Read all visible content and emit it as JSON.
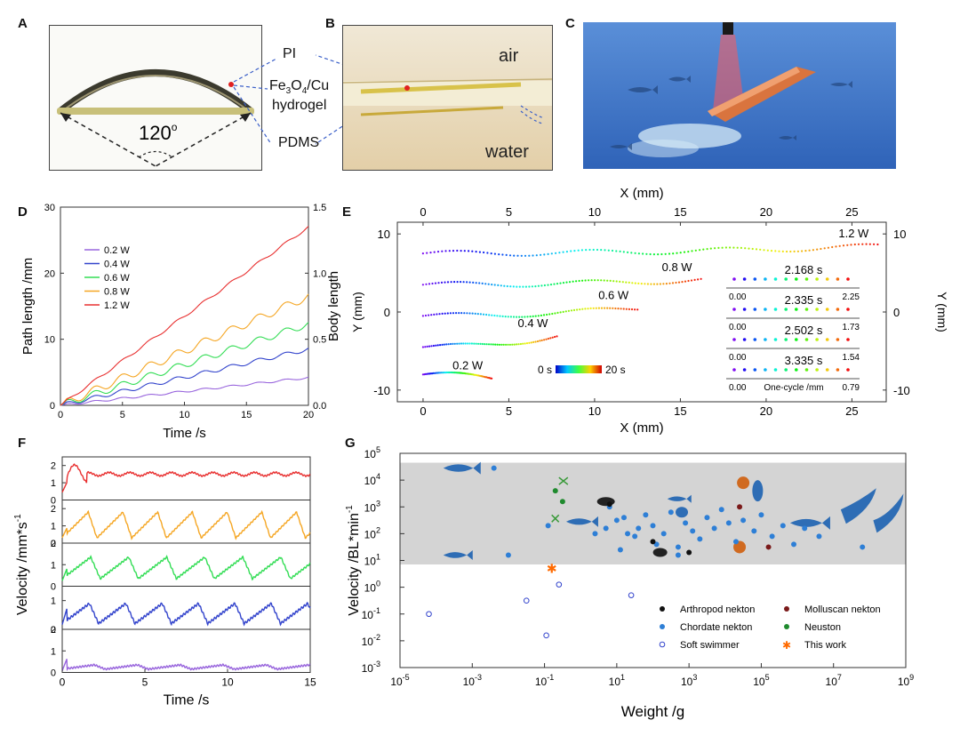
{
  "panels": {
    "A": "A",
    "B": "B",
    "C": "C",
    "D": "D",
    "E": "E",
    "F": "F",
    "G": "G"
  },
  "photoA": {
    "angle": "120",
    "angle_unit": "o"
  },
  "photoB": {
    "air": "air",
    "water": "water"
  },
  "layers": {
    "pi": "PI",
    "fe_pre": "Fe",
    "fe_sub1": "3",
    "fe_mid": "O",
    "fe_sub2": "4",
    "fe_post": "/Cu",
    "hydrogel": "hydrogel",
    "pdms": "PDMS"
  },
  "colors": {
    "w02": "#9966dd",
    "w04": "#3344cc",
    "w06": "#33dd55",
    "w08": "#f5a623",
    "w12": "#e83030",
    "grey_band": "#d4d4d4",
    "marine": "#2e6db5"
  },
  "chart_data": [
    {
      "id": "D",
      "type": "line",
      "xlabel": "Time /s",
      "ylabel": "Path length /mm",
      "y2label": "Body length",
      "xlim": [
        0,
        20
      ],
      "ylim": [
        0,
        30
      ],
      "y2lim": [
        0,
        1.5
      ],
      "xticks": [
        "0",
        "5",
        "10",
        "15",
        "20"
      ],
      "yticks": [
        "0",
        "10",
        "20",
        "30"
      ],
      "y2ticks": [
        "0.0",
        "0.5",
        "1.0",
        "1.5"
      ],
      "series": [
        {
          "name": "0.2 W",
          "color": "#9966dd",
          "end": 4.2,
          "wave": 0.15
        },
        {
          "name": "0.4 W",
          "color": "#3344cc",
          "end": 8.5,
          "wave": 0.3
        },
        {
          "name": "0.6 W",
          "color": "#33dd55",
          "end": 12.3,
          "wave": 0.5
        },
        {
          "name": "0.8 W",
          "color": "#f5a623",
          "end": 16.5,
          "wave": 0.6
        },
        {
          "name": "1.2 W",
          "color": "#e83030",
          "end": 27.0,
          "wave": 0.2
        }
      ]
    },
    {
      "id": "E",
      "type": "scatter",
      "xlabel": "X (mm)",
      "ylabel": "Y (mm)",
      "xlim": [
        -1.5,
        27
      ],
      "ylim": [
        -11.5,
        11.5
      ],
      "xticks": [
        "0",
        "5",
        "10",
        "15",
        "20",
        "25"
      ],
      "yticks": [
        "-10",
        "0",
        "10"
      ],
      "colorbar": {
        "min": "0 s",
        "max": "20 s"
      },
      "series": [
        {
          "name": "0.2 W",
          "y": -8,
          "xend": 4.0,
          "drop": -0.5
        },
        {
          "name": "0.4 W",
          "y": -4.5,
          "xend": 7.8,
          "drop": 1.4
        },
        {
          "name": "0.6 W",
          "y": -0.5,
          "xend": 12.5,
          "drop": 1.0
        },
        {
          "name": "0.8 W",
          "y": 3.5,
          "xend": 16.2,
          "drop": 0.6
        },
        {
          "name": "1.2 W",
          "y": 7.5,
          "xend": 26.5,
          "drop": 0.9
        }
      ],
      "inset": {
        "rows": [
          {
            "time": "2.168 s",
            "start": "0.00",
            "end": "2.25"
          },
          {
            "time": "2.335 s",
            "start": "0.00",
            "end": "1.73"
          },
          {
            "time": "2.502 s",
            "start": "0.00",
            "end": "1.54"
          },
          {
            "time": "3.335 s",
            "start": "0.00",
            "end": "0.79"
          }
        ],
        "label": "One-cycle /mm"
      }
    },
    {
      "id": "F",
      "type": "line",
      "xlabel": "Time /s",
      "ylabel": "Velocity /mm*s",
      "ylabel_sup": "-1",
      "xlim": [
        0,
        15
      ],
      "xticks": [
        "0",
        "5",
        "10",
        "15"
      ],
      "subplots": [
        {
          "color": "#e83030",
          "ylim": [
            0,
            2.5
          ],
          "yticks": [
            "0",
            "1",
            "2"
          ],
          "base": 1.5,
          "amp": 0.1,
          "period": 1.0
        },
        {
          "color": "#f5a623",
          "ylim": [
            0,
            2.5
          ],
          "yticks": [
            "0",
            "1",
            "2"
          ],
          "base": 1.05,
          "amp": 0.75,
          "period": 2.1
        },
        {
          "color": "#33dd55",
          "ylim": [
            0,
            2
          ],
          "yticks": [
            "0",
            "1",
            "2"
          ],
          "base": 0.85,
          "amp": 0.5,
          "period": 2.3
        },
        {
          "color": "#3344cc",
          "ylim": [
            0,
            1.5
          ],
          "yticks": [
            "0",
            "1"
          ],
          "base": 0.55,
          "amp": 0.35,
          "period": 2.2
        },
        {
          "color": "#9966dd",
          "ylim": [
            0,
            2
          ],
          "yticks": [
            "0",
            "1",
            "2"
          ],
          "base": 0.25,
          "amp": 0.1,
          "period": 2.6
        }
      ]
    },
    {
      "id": "G",
      "type": "scatter",
      "xlabel": "Weight /g",
      "ylabel": "Velocity /BL*min",
      "ylabel_sup": "-1",
      "xscale": "log",
      "yscale": "log",
      "xlim": [
        -5,
        9
      ],
      "ylim": [
        -3,
        5
      ],
      "band": [
        0.85,
        4.65
      ],
      "xticks": [
        {
          "base": "10",
          "exp": "-5"
        },
        {
          "base": "10",
          "exp": "-3"
        },
        {
          "base": "10",
          "exp": "-1"
        },
        {
          "base": "10",
          "exp": "1"
        },
        {
          "base": "10",
          "exp": "3"
        },
        {
          "base": "10",
          "exp": "5"
        },
        {
          "base": "10",
          "exp": "7"
        },
        {
          "base": "10",
          "exp": "9"
        }
      ],
      "yticks": [
        {
          "base": "10",
          "exp": "-3"
        },
        {
          "base": "10",
          "exp": "-2"
        },
        {
          "base": "10",
          "exp": "-1"
        },
        {
          "base": "10",
          "exp": "0"
        },
        {
          "base": "10",
          "exp": "1"
        },
        {
          "base": "10",
          "exp": "2"
        },
        {
          "base": "10",
          "exp": "3"
        },
        {
          "base": "10",
          "exp": "4"
        },
        {
          "base": "10",
          "exp": "5"
        }
      ],
      "legend": [
        {
          "name": "Arthropod nekton",
          "color": "#111111",
          "marker": "dot"
        },
        {
          "name": "Molluscan nekton",
          "color": "#7a1a1a",
          "marker": "dot"
        },
        {
          "name": "Chordate nekton",
          "color": "#2e7fd6",
          "marker": "dot"
        },
        {
          "name": "Neuston",
          "color": "#1f8a2e",
          "marker": "dot"
        },
        {
          "name": "Soft swimmer",
          "color": "#3344cc",
          "marker": "ring"
        },
        {
          "name": "This work",
          "color": "#ff6a00",
          "marker": "star"
        }
      ],
      "points": [
        {
          "g": "chordate",
          "x": -2.4,
          "y": 4.45
        },
        {
          "g": "chordate",
          "x": -0.9,
          "y": 2.3
        },
        {
          "g": "chordate",
          "x": 0.4,
          "y": 2.0
        },
        {
          "g": "chordate",
          "x": 0.7,
          "y": 2.2
        },
        {
          "g": "chordate",
          "x": 0.8,
          "y": 3.0
        },
        {
          "g": "chordate",
          "x": 1.0,
          "y": 2.5
        },
        {
          "g": "chordate",
          "x": 1.2,
          "y": 2.6
        },
        {
          "g": "chordate",
          "x": 1.3,
          "y": 2.0
        },
        {
          "g": "chordate",
          "x": 1.5,
          "y": 1.9
        },
        {
          "g": "chordate",
          "x": 1.6,
          "y": 2.2
        },
        {
          "g": "chordate",
          "x": 1.8,
          "y": 2.7
        },
        {
          "g": "chordate",
          "x": 2.0,
          "y": 2.3
        },
        {
          "g": "chordate",
          "x": 2.1,
          "y": 1.6
        },
        {
          "g": "chordate",
          "x": 2.3,
          "y": 2.0
        },
        {
          "g": "chordate",
          "x": 2.5,
          "y": 2.8
        },
        {
          "g": "chordate",
          "x": 2.7,
          "y": 1.5
        },
        {
          "g": "chordate",
          "x": 2.9,
          "y": 2.4
        },
        {
          "g": "chordate",
          "x": 3.1,
          "y": 2.1
        },
        {
          "g": "chordate",
          "x": 3.3,
          "y": 1.8
        },
        {
          "g": "chordate",
          "x": 3.5,
          "y": 2.6
        },
        {
          "g": "chordate",
          "x": 3.7,
          "y": 2.2
        },
        {
          "g": "chordate",
          "x": 3.9,
          "y": 2.9
        },
        {
          "g": "chordate",
          "x": 4.1,
          "y": 2.4
        },
        {
          "g": "chordate",
          "x": 4.3,
          "y": 1.7
        },
        {
          "g": "chordate",
          "x": 4.5,
          "y": 2.5
        },
        {
          "g": "chordate",
          "x": 4.8,
          "y": 2.1
        },
        {
          "g": "chordate",
          "x": 5.0,
          "y": 2.7
        },
        {
          "g": "chordate",
          "x": 5.3,
          "y": 1.9
        },
        {
          "g": "chordate",
          "x": 5.6,
          "y": 2.3
        },
        {
          "g": "chordate",
          "x": 5.9,
          "y": 1.6
        },
        {
          "g": "chordate",
          "x": 6.2,
          "y": 2.2
        },
        {
          "g": "chordate",
          "x": 6.6,
          "y": 1.9
        },
        {
          "g": "chordate",
          "x": 7.8,
          "y": 1.5
        },
        {
          "g": "chordate",
          "x": -2.0,
          "y": 1.2
        },
        {
          "g": "chordate",
          "x": 2.7,
          "y": 1.2
        },
        {
          "g": "chordate",
          "x": 1.1,
          "y": 1.4
        },
        {
          "g": "arthropod",
          "x": 0.8,
          "y": 3.1
        },
        {
          "g": "arthropod",
          "x": 2.0,
          "y": 1.7
        },
        {
          "g": "arthropod",
          "x": 3.0,
          "y": 1.3
        },
        {
          "g": "molluscan",
          "x": 4.4,
          "y": 3.0
        },
        {
          "g": "molluscan",
          "x": 5.2,
          "y": 1.5
        },
        {
          "g": "neuston",
          "x": -0.7,
          "y": 3.6
        },
        {
          "g": "neuston",
          "x": -0.5,
          "y": 3.2
        },
        {
          "g": "soft",
          "x": -4.2,
          "y": -1.0
        },
        {
          "g": "soft",
          "x": -1.5,
          "y": -0.5
        },
        {
          "g": "soft",
          "x": -0.95,
          "y": -1.8
        },
        {
          "g": "soft",
          "x": -0.6,
          "y": 0.1
        },
        {
          "g": "soft",
          "x": 1.4,
          "y": -0.3
        },
        {
          "g": "this",
          "x": -0.8,
          "y": 0.7
        }
      ]
    }
  ]
}
